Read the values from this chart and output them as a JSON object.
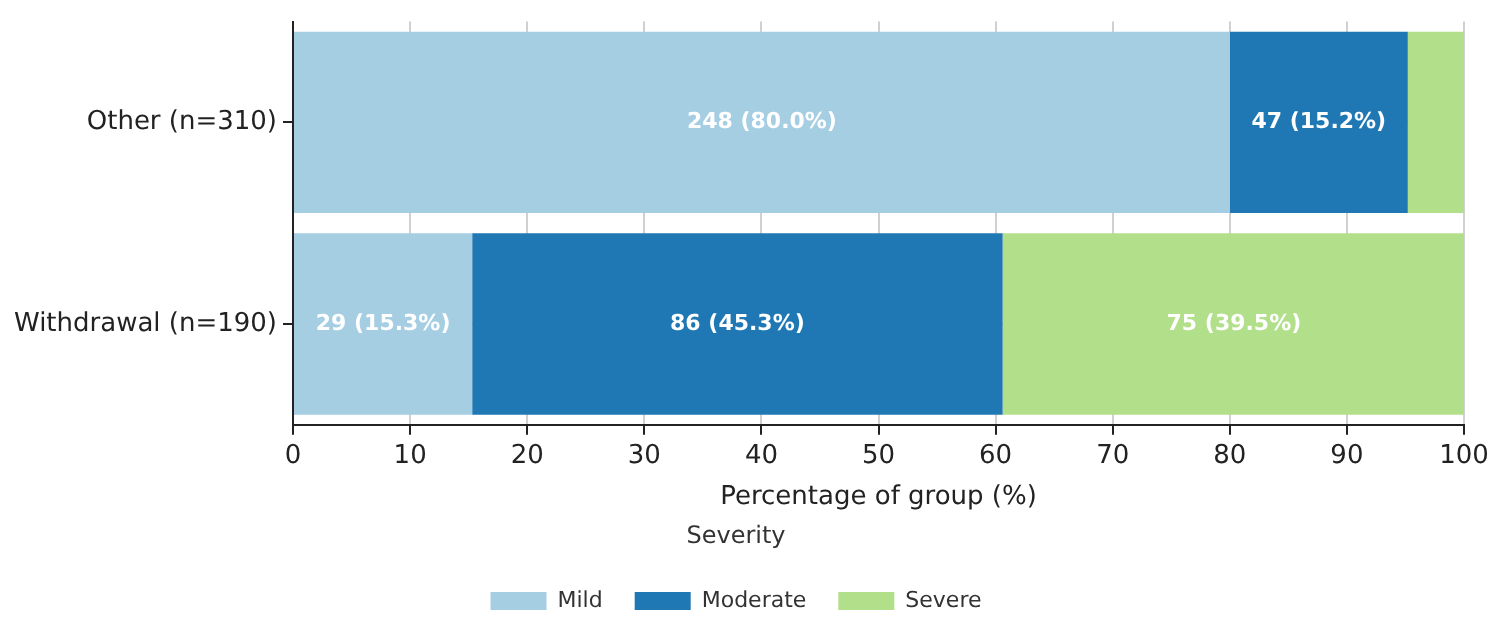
{
  "chart_data": {
    "type": "bar",
    "orientation": "horizontal",
    "stacked": true,
    "xlabel": "Percentage of group (%)",
    "legend_title": "Severity",
    "legend": "bottom",
    "grid": true,
    "categories": [
      "Other (n=310)",
      "Withdrawal (n=190)"
    ],
    "xlim": [
      0,
      100
    ],
    "xticks": [
      0,
      10,
      20,
      30,
      40,
      50,
      60,
      70,
      80,
      90,
      100
    ],
    "series": [
      {
        "name": "Mild",
        "color": "#a6cee3",
        "values": [
          80.0,
          15.3
        ],
        "value_labels": [
          "248 (80.0%)",
          "29 (15.3%)"
        ]
      },
      {
        "name": "Moderate",
        "color": "#1f78b4",
        "values": [
          15.2,
          45.3
        ],
        "value_labels": [
          "47 (15.2%)",
          "86 (45.3%)"
        ]
      },
      {
        "name": "Severe",
        "color": "#b2df8a",
        "values": [
          4.8,
          39.5
        ],
        "value_labels": [
          null,
          "75 (39.5%)"
        ]
      }
    ]
  }
}
